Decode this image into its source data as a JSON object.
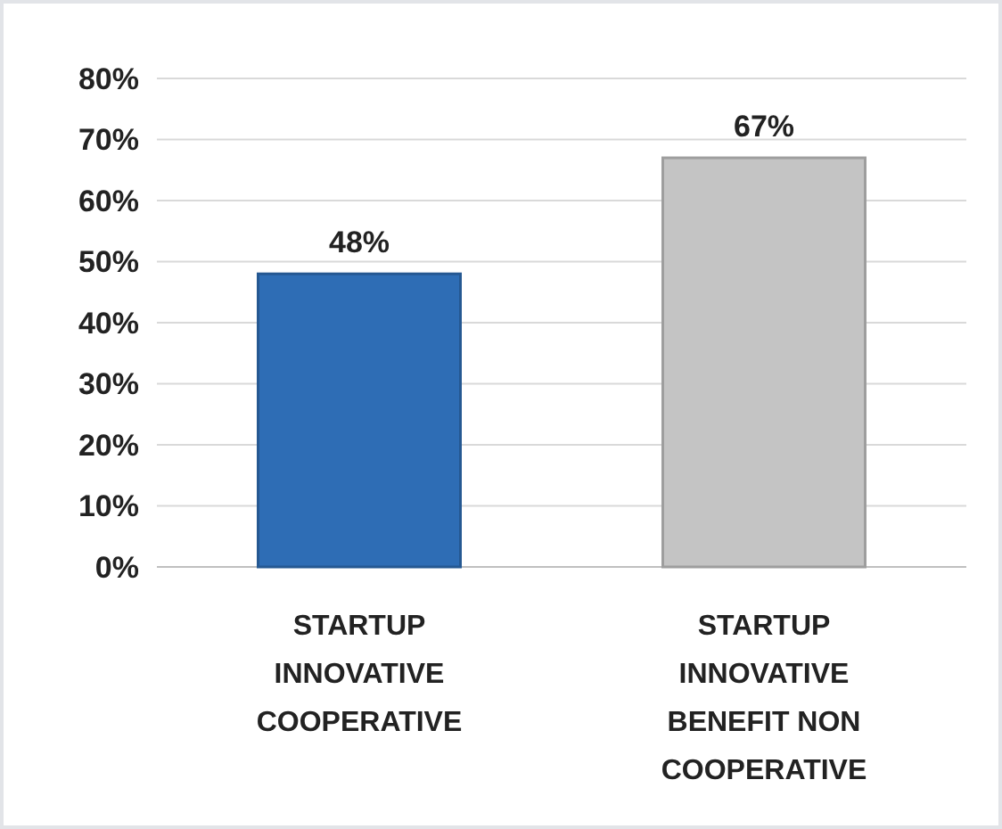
{
  "chart_data": {
    "type": "bar",
    "categories": [
      "STARTUP INNOVATIVE COOPERATIVE",
      "STARTUP INNOVATIVE BENEFIT NON COOPERATIVE"
    ],
    "values": [
      48,
      67
    ],
    "colors": [
      "#2e6db5",
      "#c4c4c4"
    ],
    "value_labels": [
      "48%",
      "67%"
    ],
    "ylim": [
      0,
      80
    ],
    "yticks": [
      {
        "value": 0,
        "label": "0%"
      },
      {
        "value": 10,
        "label": "10%"
      },
      {
        "value": 20,
        "label": "20%"
      },
      {
        "value": 30,
        "label": "30%"
      },
      {
        "value": 40,
        "label": "40%"
      },
      {
        "value": 50,
        "label": "50%"
      },
      {
        "value": 60,
        "label": "60%"
      },
      {
        "value": 70,
        "label": "70%"
      },
      {
        "value": 80,
        "label": "80%"
      }
    ],
    "grid": true
  }
}
